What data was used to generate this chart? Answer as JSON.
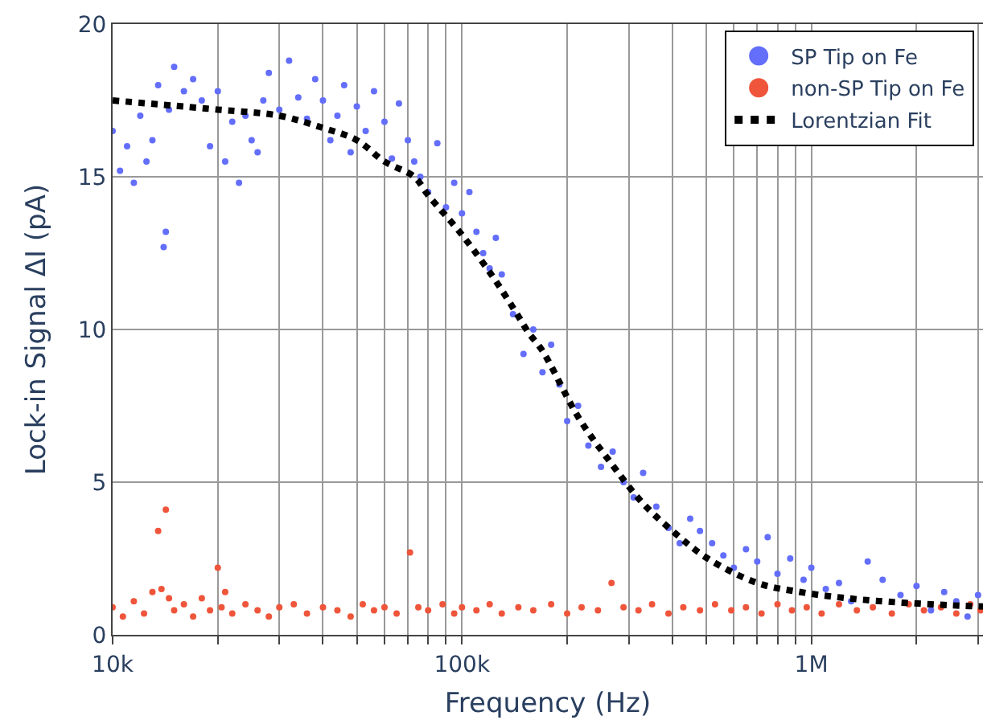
{
  "chart_data": {
    "type": "scatter",
    "xlabel": "Frequency (Hz)",
    "ylabel": "Lock-in Signal ΔI (pA)",
    "log": "x",
    "xlim": [
      10000,
      3100000
    ],
    "xticks": [
      {
        "value": 10000,
        "label": "10k"
      },
      {
        "value": 20000,
        "label": null
      },
      {
        "value": 30000,
        "label": null
      },
      {
        "value": 40000,
        "label": null
      },
      {
        "value": 50000,
        "label": null
      },
      {
        "value": 60000,
        "label": null
      },
      {
        "value": 70000,
        "label": null
      },
      {
        "value": 80000,
        "label": null
      },
      {
        "value": 90000,
        "label": null
      },
      {
        "value": 100000,
        "label": "100k"
      },
      {
        "value": 200000,
        "label": null
      },
      {
        "value": 300000,
        "label": null
      },
      {
        "value": 400000,
        "label": null
      },
      {
        "value": 500000,
        "label": null
      },
      {
        "value": 600000,
        "label": null
      },
      {
        "value": 700000,
        "label": null
      },
      {
        "value": 800000,
        "label": null
      },
      {
        "value": 900000,
        "label": null
      },
      {
        "value": 1000000,
        "label": "1M"
      },
      {
        "value": 2000000,
        "label": null
      },
      {
        "value": 3000000,
        "label": null
      }
    ],
    "ylim": [
      0,
      20
    ],
    "yticks": [
      0,
      5,
      10,
      15,
      20
    ],
    "grid": true,
    "legend": "top right",
    "marker": "circle",
    "series": [
      {
        "name": "SP Tip on Fe",
        "color": "#636efa",
        "x": [
          10000,
          10500,
          11000,
          11500,
          12000,
          12500,
          13000,
          13500,
          14000,
          14200,
          14500,
          15000,
          16000,
          17000,
          18000,
          19000,
          20000,
          21000,
          22000,
          23000,
          24000,
          25000,
          26000,
          27000,
          28000,
          30000,
          32000,
          34000,
          36000,
          38000,
          40000,
          42000,
          44000,
          46000,
          48000,
          50000,
          53000,
          56000,
          60000,
          63000,
          66000,
          70000,
          73000,
          76000,
          80000,
          85000,
          90000,
          95000,
          100000,
          105000,
          110000,
          115000,
          120000,
          125000,
          130000,
          140000,
          150000,
          160000,
          170000,
          180000,
          190000,
          200000,
          215000,
          230000,
          250000,
          270000,
          290000,
          310000,
          330000,
          360000,
          390000,
          420000,
          450000,
          480000,
          520000,
          560000,
          600000,
          650000,
          700000,
          750000,
          800000,
          870000,
          950000,
          1000000,
          1100000,
          1200000,
          1300000,
          1450000,
          1600000,
          1800000,
          2000000,
          2200000,
          2400000,
          2600000,
          2800000,
          3000000
        ],
        "values": [
          16.5,
          15.2,
          16.0,
          14.8,
          17.0,
          15.5,
          16.2,
          18.0,
          12.7,
          13.2,
          17.2,
          18.6,
          17.8,
          18.2,
          17.5,
          16.0,
          17.8,
          15.5,
          16.8,
          14.8,
          17.0,
          16.2,
          15.8,
          17.5,
          18.4,
          17.2,
          18.8,
          17.6,
          16.9,
          18.2,
          17.5,
          16.2,
          17.0,
          18.0,
          15.8,
          17.3,
          16.5,
          17.8,
          16.8,
          15.6,
          17.4,
          16.2,
          15.5,
          15.0,
          14.5,
          16.1,
          14.0,
          14.8,
          13.8,
          14.5,
          13.2,
          12.5,
          12.0,
          13.0,
          11.8,
          10.5,
          9.2,
          10.0,
          8.6,
          9.5,
          8.2,
          7.0,
          7.5,
          6.2,
          5.5,
          6.0,
          5.0,
          4.5,
          5.3,
          4.2,
          3.5,
          3.0,
          3.8,
          3.4,
          3.0,
          2.6,
          2.2,
          2.8,
          2.4,
          3.2,
          2.0,
          2.5,
          1.8,
          2.2,
          1.5,
          1.7,
          1.1,
          2.4,
          1.8,
          1.3,
          1.6,
          0.8,
          1.4,
          1.1,
          0.6,
          1.3
        ]
      },
      {
        "name": "non-SP Tip on Fe",
        "color": "#ef553b",
        "x": [
          10000,
          10700,
          11500,
          12300,
          13000,
          13500,
          13800,
          14200,
          14500,
          15000,
          16000,
          17000,
          18000,
          19000,
          20000,
          20500,
          21000,
          22000,
          24000,
          26000,
          28000,
          30000,
          33000,
          36000,
          40000,
          44000,
          48000,
          52000,
          56000,
          60000,
          65000,
          71000,
          75000,
          80000,
          88000,
          95000,
          100000,
          110000,
          120000,
          130000,
          145000,
          160000,
          180000,
          200000,
          220000,
          245000,
          268000,
          290000,
          320000,
          350000,
          390000,
          430000,
          480000,
          530000,
          590000,
          650000,
          720000,
          800000,
          880000,
          970000,
          1070000,
          1200000,
          1350000,
          1500000,
          1700000,
          1900000,
          2100000,
          2350000,
          2600000,
          2850000,
          3050000
        ],
        "values": [
          0.9,
          0.6,
          1.1,
          0.7,
          1.4,
          3.4,
          1.5,
          4.1,
          1.2,
          0.8,
          1.0,
          0.6,
          1.2,
          0.8,
          2.2,
          0.9,
          1.4,
          0.7,
          1.0,
          0.8,
          0.6,
          0.9,
          1.0,
          0.7,
          0.9,
          0.8,
          0.6,
          1.0,
          0.8,
          0.9,
          0.7,
          2.7,
          0.9,
          0.8,
          1.0,
          0.7,
          0.9,
          0.8,
          1.0,
          0.7,
          0.9,
          0.8,
          1.0,
          0.7,
          0.9,
          0.8,
          1.7,
          0.9,
          0.8,
          1.0,
          0.7,
          0.9,
          0.8,
          1.0,
          0.8,
          0.9,
          0.7,
          1.0,
          0.8,
          0.9,
          0.7,
          1.0,
          0.8,
          0.9,
          0.7,
          1.0,
          0.8,
          0.9,
          0.7,
          1.0,
          0.8
        ]
      },
      {
        "name": "Lorentzian Fit",
        "type": "line",
        "color": "#000000",
        "line_style": "dotted",
        "marker": "none",
        "x": [
          10000,
          20000,
          30000,
          40000,
          50000,
          60000,
          73000,
          80000,
          100000,
          123000,
          142000,
          155000,
          170000,
          216000,
          268000,
          330000,
          410000,
          505000,
          700000,
          930000,
          1400000,
          2700000,
          3100000
        ],
        "values": [
          17.5,
          17.2,
          17.0,
          16.6,
          16.2,
          15.5,
          15.0,
          14.4,
          13.1,
          11.7,
          10.6,
          9.9,
          9.3,
          7.1,
          5.6,
          4.3,
          3.3,
          2.5,
          1.7,
          1.4,
          1.15,
          0.95,
          0.93
        ]
      }
    ]
  }
}
